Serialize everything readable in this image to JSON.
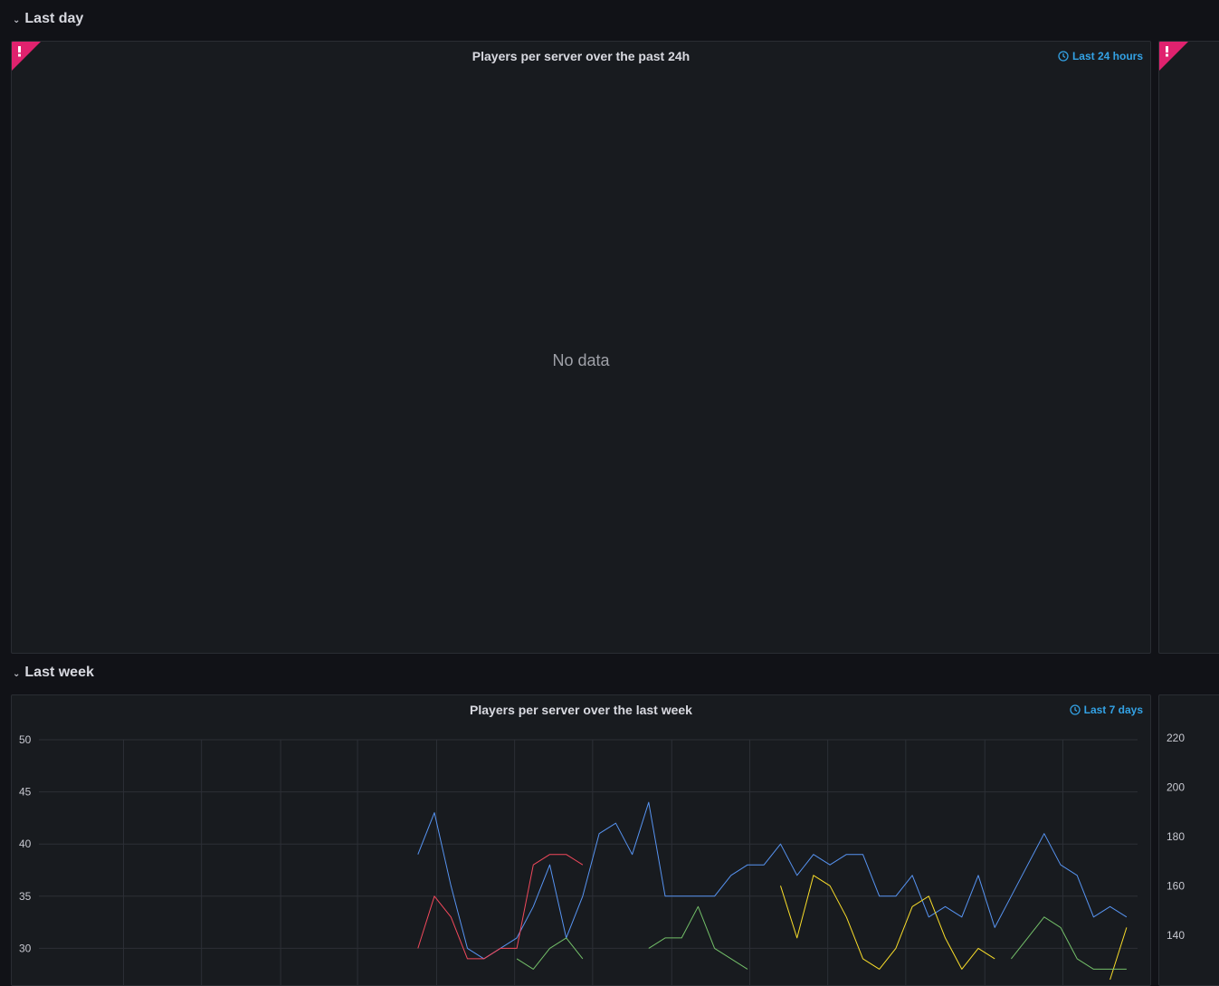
{
  "rows": [
    {
      "label": "Last day"
    },
    {
      "label": "Last week"
    }
  ],
  "panels": {
    "day_main": {
      "title": "Players per server over the past 24h",
      "time_override": "Last 24 hours",
      "status": "error",
      "message": "No data"
    },
    "week_main": {
      "title": "Players per server over the last week",
      "time_override": "Last 7 days"
    },
    "week_side": {
      "y_ticks": [
        "220",
        "200",
        "180",
        "160",
        "140"
      ]
    }
  },
  "colors": {
    "error": "#e0226e",
    "link": "#33a2e5",
    "series_blue": "#5794f2",
    "series_red": "#f2495c",
    "series_yellow": "#fade2a",
    "series_green": "#73bf69"
  },
  "chart_data": {
    "type": "line",
    "title": "Players per server over the last week",
    "ylim": [
      25,
      50
    ],
    "y_ticks": [
      30,
      35,
      40,
      45,
      50
    ],
    "grid": true,
    "x": [
      0.345,
      0.36,
      0.375,
      0.39,
      0.405,
      0.42,
      0.435,
      0.45,
      0.465,
      0.48,
      0.495,
      0.51,
      0.525,
      0.54,
      0.555,
      0.57,
      0.585,
      0.6,
      0.615,
      0.63,
      0.645,
      0.66,
      0.675,
      0.69,
      0.705,
      0.72,
      0.735,
      0.75,
      0.765,
      0.78,
      0.795,
      0.81,
      0.825,
      0.84,
      0.855,
      0.87,
      0.885,
      0.9,
      0.915,
      0.93,
      0.945,
      0.96,
      0.975,
      0.99
    ],
    "series": [
      {
        "color": "#5794f2",
        "values": [
          39,
          43,
          36,
          30,
          29,
          30,
          31,
          34,
          38,
          31,
          35,
          41,
          42,
          39,
          44,
          35,
          35,
          35,
          35,
          37,
          38,
          38,
          40,
          37,
          39,
          38,
          39,
          39,
          35,
          35,
          37,
          33,
          34,
          33,
          37,
          32,
          35,
          38,
          41,
          38,
          37,
          33,
          34,
          33
        ]
      },
      {
        "color": "#f2495c",
        "values": [
          30,
          35,
          33,
          29,
          29,
          30,
          30,
          38,
          39,
          39,
          38,
          null,
          null,
          null,
          null,
          null,
          null,
          null,
          null,
          null,
          null,
          null,
          null,
          null,
          null,
          null,
          null,
          null,
          null,
          null,
          null,
          null,
          null,
          null,
          null,
          null,
          null,
          null,
          null,
          null,
          null,
          null,
          null,
          null
        ]
      },
      {
        "color": "#fade2a",
        "values": [
          null,
          null,
          null,
          null,
          null,
          null,
          null,
          null,
          null,
          null,
          null,
          null,
          null,
          null,
          null,
          null,
          null,
          null,
          null,
          null,
          null,
          null,
          36,
          31,
          37,
          36,
          33,
          29,
          28,
          30,
          34,
          35,
          31,
          28,
          30,
          29,
          null,
          null,
          null,
          null,
          null,
          null,
          27,
          32
        ]
      },
      {
        "color": "#73bf69",
        "values": [
          27,
          null,
          null,
          null,
          null,
          null,
          29,
          28,
          30,
          31,
          29,
          null,
          null,
          null,
          30,
          31,
          31,
          34,
          30,
          29,
          28,
          null,
          null,
          null,
          null,
          null,
          null,
          null,
          null,
          null,
          null,
          null,
          null,
          null,
          null,
          null,
          29,
          31,
          33,
          32,
          29,
          28,
          28,
          28
        ]
      }
    ]
  }
}
